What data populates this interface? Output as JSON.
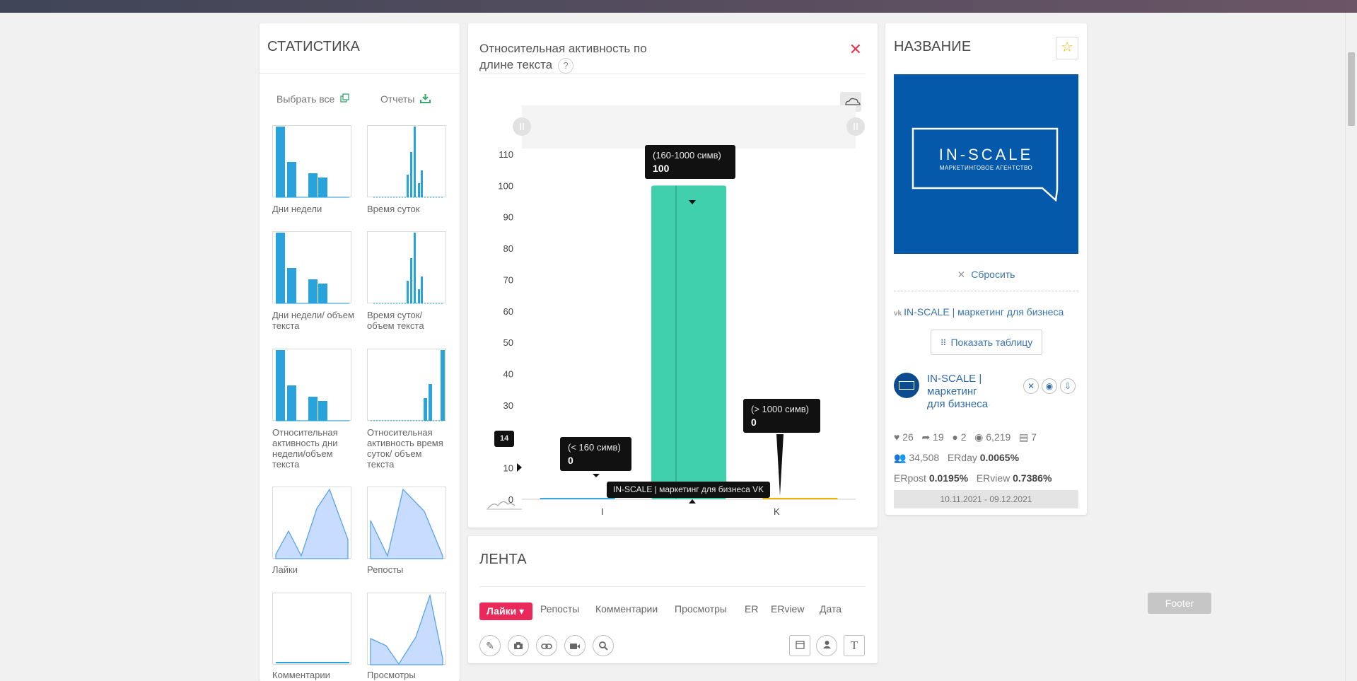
{
  "stats": {
    "title": "СТАТИСТИКА",
    "select_all": "Выбрать все",
    "reports": "Отчеты",
    "thumbs": [
      {
        "label": "Дни недели"
      },
      {
        "label": "Время суток"
      },
      {
        "label": "Дни недели/ объем текста"
      },
      {
        "label": "Время суток/ объем текста"
      },
      {
        "label": "Относительная активность дни недели/объем текста"
      },
      {
        "label": "Относительная активность время суток/ объем текста"
      },
      {
        "label": "Лайки"
      },
      {
        "label": "Репосты"
      },
      {
        "label": "Комментарии"
      },
      {
        "label": "Просмотры"
      }
    ]
  },
  "chart": {
    "heading": "Относительная активность по длине текста",
    "help": "?",
    "axis_hover_label": "14",
    "x_tooltip": "IN-SCALE | маркетинг для бизнеса VK",
    "x_label_left_fragment": "I",
    "x_label_right_fragment": "K",
    "tooltips": [
      {
        "category": "(< 160 симв)",
        "value": "0"
      },
      {
        "category": "(160-1000 симв)",
        "value": "100"
      },
      {
        "category": "(> 1000 симв)",
        "value": "0"
      }
    ]
  },
  "chart_data": {
    "type": "bar",
    "title": "Относительная активность по длине текста",
    "categories": [
      "(< 160 симв)",
      "(160-1000 симв)",
      "(> 1000 симв)"
    ],
    "series": [
      {
        "name": "IN-SCALE | маркетинг для бизнеса VK",
        "values": [
          0,
          100,
          0
        ]
      }
    ],
    "ylim": [
      0,
      110
    ],
    "yticks": [
      0,
      10,
      20,
      30,
      40,
      50,
      60,
      70,
      80,
      90,
      100,
      110
    ],
    "colors": {
      "bar": "#40d0ad",
      "small_bar_left": "#3aa6d9",
      "small_bar_right": "#f0b400"
    },
    "grid": false
  },
  "feed": {
    "title": "ЛЕНТА",
    "active_tab": "Лайки",
    "tabs": [
      "Репосты",
      "Комментарии",
      "Просмотры",
      "ER",
      "ERview",
      "Дата"
    ]
  },
  "name": {
    "title": "НАЗВАНИЕ",
    "logo_text": "IN-SCALE",
    "logo_subtext": "МАРКЕТИНГОВОЕ АГЕНТСТВО",
    "reset": "Сбросить",
    "vk_link": "IN-SCALE | маркетинг для бизнеса",
    "show_table": "Показать таблицу",
    "profile_name": "IN-SCALE | маркетинг для бизнеса",
    "likes": "26",
    "reposts": "19",
    "comments": "2",
    "views": "6,219",
    "posts": "7",
    "followers": "34,508",
    "erday_label": "ERday",
    "erday": "0.0065%",
    "erpost_label": "ERpost",
    "erpost": "0.0195%",
    "erview_label": "ERview",
    "erview": "0.7386%",
    "date_range": "10.11.2021 - 09.12.2021"
  },
  "footer": {
    "label": "Footer"
  }
}
